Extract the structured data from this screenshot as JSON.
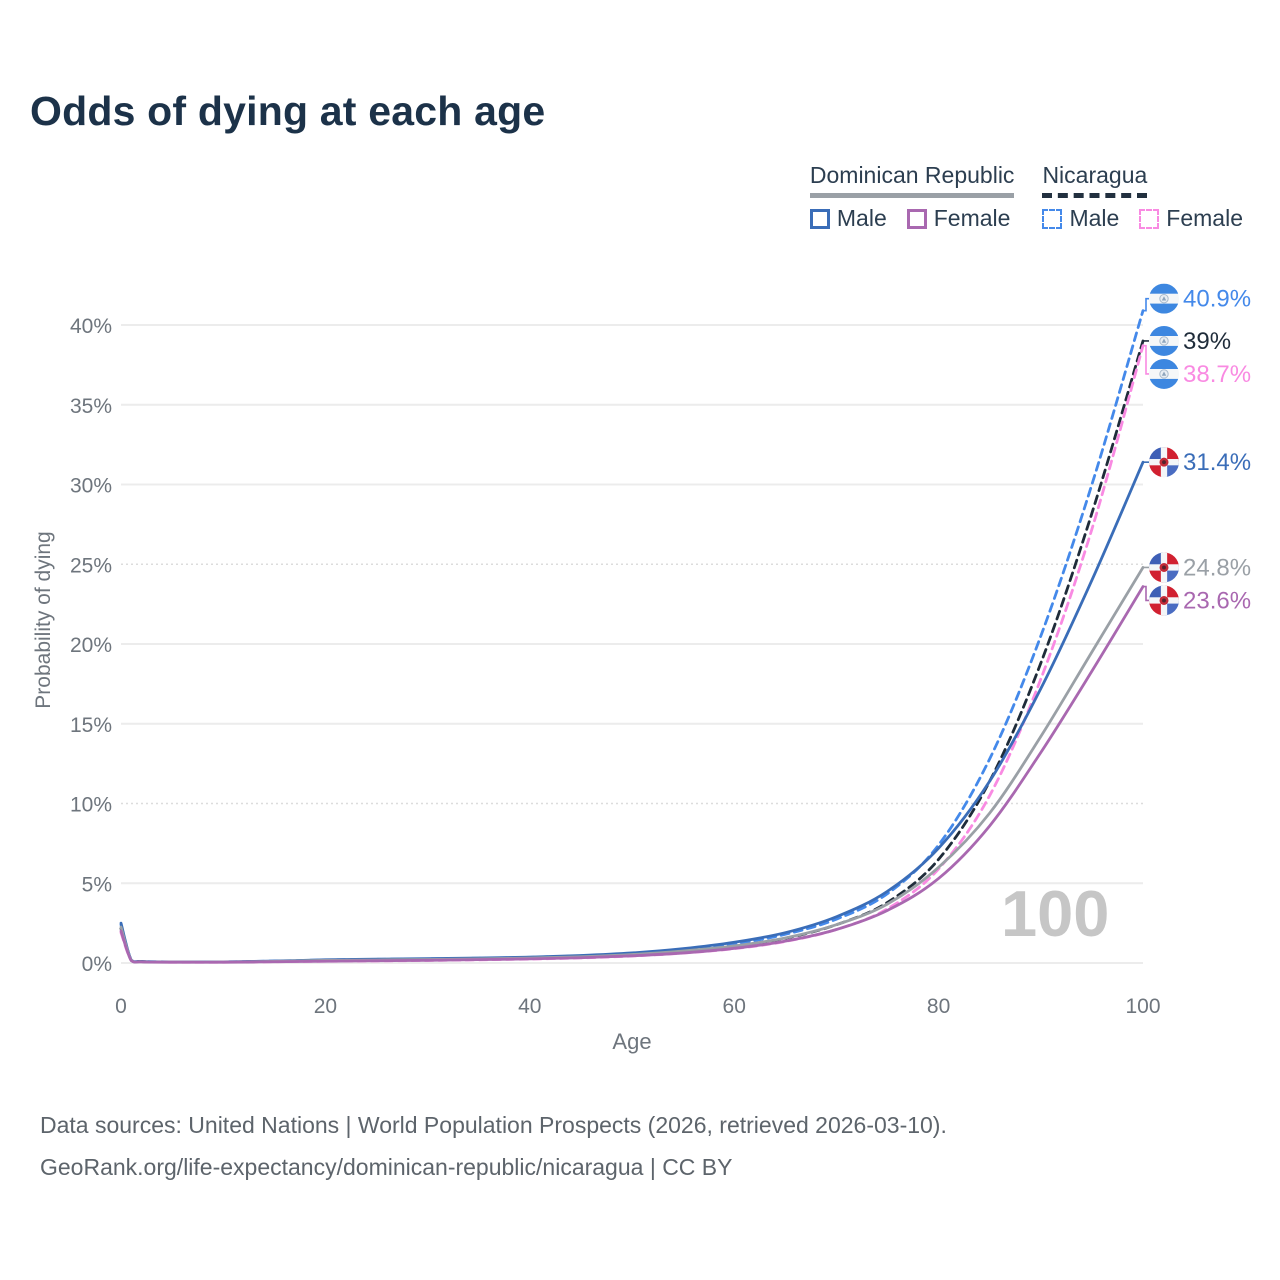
{
  "title": "Odds of dying at each age",
  "legend": {
    "groups": [
      {
        "label": "Dominican Republic",
        "line_style": "solid",
        "underline_color": "#9aa0a6",
        "items": [
          {
            "label": "Male",
            "color": "#3a6db8"
          },
          {
            "label": "Female",
            "color": "#a968b0"
          }
        ]
      },
      {
        "label": "Nicaragua",
        "line_style": "dashed",
        "underline_color": "#22303f",
        "items": [
          {
            "label": "Male",
            "color": "#4489ea"
          },
          {
            "label": "Female",
            "color": "#f98ae2"
          }
        ]
      }
    ]
  },
  "watermark": "100",
  "footer": {
    "line1": "Data sources: United Nations | World Population Prospects (2026, retrieved 2026-03-10).",
    "line2": "GeoRank.org/life-expectancy/dominican-republic/nicaragua | CC BY"
  },
  "chart_data": {
    "type": "line",
    "title": "Odds of dying at each age",
    "xlabel": "Age",
    "ylabel": "Probability of dying",
    "x_ticks": [
      0,
      20,
      40,
      60,
      80,
      100
    ],
    "y_tick_values": [
      0,
      5,
      10,
      15,
      20,
      25,
      30,
      35,
      40
    ],
    "y_tick_labels": [
      "0%",
      "5%",
      "10%",
      "15%",
      "20%",
      "25%",
      "30%",
      "35%",
      "40%"
    ],
    "xlim": [
      0,
      100
    ],
    "ylim": [
      0,
      43
    ],
    "grid": "horizontal-only",
    "dotted_gridlines_pct": [
      10,
      25
    ],
    "legend_position": "top-right",
    "ages": [
      0,
      1,
      2,
      5,
      10,
      15,
      20,
      25,
      30,
      35,
      40,
      45,
      50,
      55,
      60,
      65,
      70,
      75,
      80,
      85,
      90,
      95,
      100
    ],
    "series": [
      {
        "name": "Nicaragua Male",
        "country": "Nicaragua",
        "sex": "Male",
        "color": "#4489ea",
        "dash": "8 5.5",
        "end_label": "40.9%",
        "end_value": 40.9,
        "flag": "nicaragua",
        "values": [
          2.4,
          0.2,
          0.1,
          0.07,
          0.07,
          0.12,
          0.19,
          0.23,
          0.26,
          0.3,
          0.36,
          0.45,
          0.6,
          0.85,
          1.2,
          1.8,
          2.75,
          4.35,
          7.4,
          12.8,
          20.5,
          30.0,
          40.9
        ]
      },
      {
        "name": "Nicaragua",
        "country": "Nicaragua",
        "sex": "Both",
        "color": "#1f2c3a",
        "dash": "8 5.5",
        "end_label": "39%",
        "end_value": 39,
        "flag": "nicaragua",
        "values": [
          2.15,
          0.18,
          0.09,
          0.06,
          0.06,
          0.1,
          0.15,
          0.18,
          0.21,
          0.25,
          0.3,
          0.38,
          0.52,
          0.73,
          1.05,
          1.55,
          2.4,
          3.8,
          6.5,
          11.4,
          18.8,
          28.2,
          39.0
        ]
      },
      {
        "name": "Nicaragua Female",
        "country": "Nicaragua",
        "sex": "Female",
        "color": "#f98ae2",
        "dash": "8 5.5",
        "end_label": "38.7%",
        "end_value": 38.7,
        "flag": "nicaragua",
        "values": [
          1.9,
          0.16,
          0.08,
          0.05,
          0.05,
          0.08,
          0.11,
          0.13,
          0.16,
          0.2,
          0.25,
          0.32,
          0.44,
          0.62,
          0.9,
          1.35,
          2.1,
          3.4,
          5.9,
          10.5,
          17.8,
          27.2,
          38.7
        ]
      },
      {
        "name": "Dominican Republic Male",
        "country": "Dominican Republic",
        "sex": "Male",
        "color": "#3a6db8",
        "dash": null,
        "end_label": "31.4%",
        "end_value": 31.4,
        "flag": "dominican-republic",
        "values": [
          2.5,
          0.18,
          0.09,
          0.07,
          0.07,
          0.12,
          0.2,
          0.24,
          0.27,
          0.31,
          0.37,
          0.47,
          0.63,
          0.9,
          1.3,
          1.9,
          2.9,
          4.5,
          7.2,
          11.4,
          17.2,
          24.0,
          31.4
        ]
      },
      {
        "name": "Dominican Republic",
        "country": "Dominican Republic",
        "sex": "Both",
        "color": "#9aa0a6",
        "dash": null,
        "end_label": "24.8%",
        "end_value": 24.8,
        "flag": "dominican-republic",
        "values": [
          2.25,
          0.17,
          0.08,
          0.06,
          0.06,
          0.1,
          0.16,
          0.19,
          0.22,
          0.26,
          0.31,
          0.39,
          0.53,
          0.75,
          1.07,
          1.57,
          2.4,
          3.7,
          6.0,
          9.4,
          14.2,
          19.5,
          24.8
        ]
      },
      {
        "name": "Dominican Republic Female",
        "country": "Dominican Republic",
        "sex": "Female",
        "color": "#a968b0",
        "dash": null,
        "end_label": "23.6%",
        "end_value": 23.6,
        "flag": "dominican-republic",
        "values": [
          2.0,
          0.15,
          0.07,
          0.05,
          0.05,
          0.08,
          0.11,
          0.14,
          0.17,
          0.21,
          0.26,
          0.33,
          0.45,
          0.63,
          0.92,
          1.37,
          2.1,
          3.3,
          5.3,
          8.6,
          13.2,
          18.3,
          23.6
        ]
      }
    ]
  }
}
